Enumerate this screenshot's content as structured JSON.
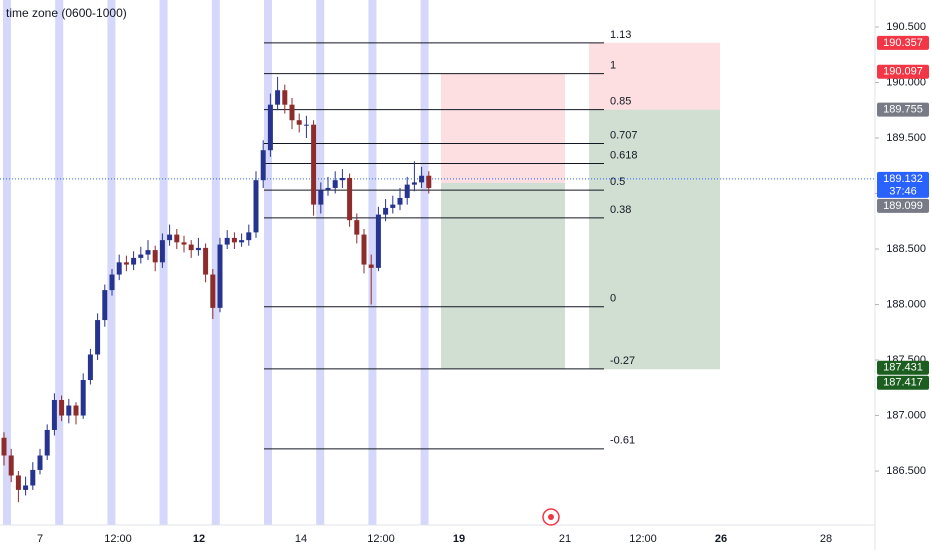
{
  "title": "time zone (0600-1000)",
  "price_axis": {
    "ylim": [
      186.014,
      190.743
    ],
    "ticks": [
      {
        "value": 190.5,
        "label": "190.500"
      },
      {
        "value": 190,
        "label": "190.000"
      },
      {
        "value": 189.5,
        "label": "189.500"
      },
      {
        "value": 189,
        "label": "189.000"
      },
      {
        "value": 188.5,
        "label": "188.500"
      },
      {
        "value": 188,
        "label": "188.000"
      },
      {
        "value": 187.5,
        "label": "187.500"
      },
      {
        "value": 187,
        "label": "187.000"
      },
      {
        "value": 186.5,
        "label": "186.500"
      }
    ]
  },
  "time_axis": [
    {
      "label": "7",
      "bold": false
    },
    {
      "label": "12:00",
      "bold": false
    },
    {
      "label": "12",
      "bold": true
    },
    {
      "label": "14",
      "bold": false
    },
    {
      "label": "12:00",
      "bold": false
    },
    {
      "label": "19",
      "bold": true
    },
    {
      "label": "21",
      "bold": false
    },
    {
      "label": "12:00",
      "bold": false
    },
    {
      "label": "26",
      "bold": true
    },
    {
      "label": "28",
      "bold": false
    }
  ],
  "colors": {
    "up": "#26348f",
    "down": "#8e2b2b"
  },
  "candles": [
    [
      186.8,
      186.85,
      186.55,
      186.64
    ],
    [
      186.64,
      186.7,
      186.4,
      186.46
    ],
    [
      186.46,
      186.5,
      186.22,
      186.33
    ],
    [
      186.33,
      186.45,
      186.28,
      186.37
    ],
    [
      186.37,
      186.58,
      186.33,
      186.51
    ],
    [
      186.51,
      186.7,
      186.47,
      186.64
    ],
    [
      186.64,
      186.92,
      186.6,
      186.87
    ],
    [
      186.87,
      187.2,
      186.82,
      187.14
    ],
    [
      187.14,
      187.18,
      186.95,
      187.0
    ],
    [
      187.0,
      187.15,
      186.93,
      187.09
    ],
    [
      187.09,
      187.12,
      186.92,
      187.0
    ],
    [
      187.0,
      187.38,
      186.97,
      187.32
    ],
    [
      187.32,
      187.6,
      187.28,
      187.55
    ],
    [
      187.55,
      187.92,
      187.5,
      187.86
    ],
    [
      187.86,
      188.18,
      187.8,
      188.13
    ],
    [
      188.13,
      188.32,
      188.08,
      188.27
    ],
    [
      188.27,
      188.45,
      188.22,
      188.38
    ],
    [
      188.38,
      188.44,
      188.3,
      188.36
    ],
    [
      188.36,
      188.48,
      188.31,
      188.42
    ],
    [
      188.42,
      188.52,
      188.37,
      188.45
    ],
    [
      188.45,
      188.58,
      188.4,
      188.49
    ],
    [
      188.49,
      188.53,
      188.3,
      188.38
    ],
    [
      188.38,
      188.64,
      188.33,
      188.58
    ],
    [
      188.58,
      188.72,
      188.53,
      188.63
    ],
    [
      188.63,
      188.68,
      188.5,
      188.56
    ],
    [
      188.56,
      188.62,
      188.47,
      188.54
    ],
    [
      188.54,
      188.58,
      188.42,
      188.49
    ],
    [
      188.49,
      188.6,
      188.44,
      188.51
    ],
    [
      188.51,
      188.55,
      188.2,
      188.27
    ],
    [
      188.27,
      188.32,
      187.87,
      187.97
    ],
    [
      187.97,
      188.6,
      187.93,
      188.54
    ],
    [
      188.54,
      188.67,
      188.5,
      188.6
    ],
    [
      188.6,
      188.65,
      188.5,
      188.56
    ],
    [
      188.56,
      188.64,
      188.52,
      188.58
    ],
    [
      188.58,
      188.72,
      188.53,
      188.65
    ],
    [
      188.65,
      189.2,
      188.6,
      189.12
    ],
    [
      189.12,
      189.48,
      189.05,
      189.39
    ],
    [
      189.39,
      189.9,
      189.33,
      189.8
    ],
    [
      189.8,
      190.05,
      189.75,
      189.93
    ],
    [
      189.93,
      189.98,
      189.72,
      189.8
    ],
    [
      189.8,
      189.86,
      189.58,
      189.66
    ],
    [
      189.66,
      189.72,
      189.55,
      189.62
    ],
    [
      189.62,
      189.7,
      189.5,
      189.62
    ],
    [
      189.62,
      189.66,
      188.8,
      188.9
    ],
    [
      188.9,
      189.1,
      188.82,
      189.03
    ],
    [
      189.03,
      189.15,
      188.98,
      189.05
    ],
    [
      189.05,
      189.2,
      189.0,
      189.12
    ],
    [
      189.12,
      189.22,
      189.05,
      189.14
    ],
    [
      189.14,
      189.18,
      188.7,
      188.76
    ],
    [
      188.76,
      188.82,
      188.55,
      188.63
    ],
    [
      188.63,
      188.68,
      188.28,
      188.36
    ],
    [
      188.36,
      188.45,
      188.0,
      188.33
    ],
    [
      188.33,
      188.88,
      188.3,
      188.81
    ],
    [
      188.81,
      188.95,
      188.75,
      188.87
    ],
    [
      188.87,
      188.98,
      188.82,
      188.9
    ],
    [
      188.9,
      189.05,
      188.85,
      188.96
    ],
    [
      188.96,
      189.15,
      188.9,
      189.08
    ],
    [
      189.08,
      189.29,
      189.02,
      189.1
    ],
    [
      189.1,
      189.24,
      189.05,
      189.16
    ],
    [
      189.16,
      189.2,
      189.0,
      189.05
    ]
  ],
  "current_price": {
    "value": 189.132,
    "label": "189.132",
    "countdown": "37:46",
    "color": "#2962ff"
  },
  "fib": {
    "color": "#131722",
    "levels": [
      {
        "ratio": 1.13,
        "price": 190.357
      },
      {
        "ratio": 1,
        "price": 190.08
      },
      {
        "ratio": 0.85,
        "price": 189.755
      },
      {
        "ratio": 0.707,
        "price": 189.45
      },
      {
        "ratio": 0.618,
        "price": 189.27
      },
      {
        "ratio": 0.5,
        "price": 189.03
      },
      {
        "ratio": 0.38,
        "price": 188.78
      },
      {
        "ratio": 0,
        "price": 187.98
      },
      {
        "ratio": -0.27,
        "price": 187.42
      },
      {
        "ratio": -0.61,
        "price": 186.7
      }
    ]
  },
  "positions": [
    {
      "stop": 190.08,
      "entry": 189.095,
      "target": 187.42
    },
    {
      "stop": 190.357,
      "entry": 189.755,
      "target": 187.417
    }
  ],
  "price_tags": [
    {
      "value": 190.357,
      "label": "190.357",
      "color": "#f23645"
    },
    {
      "value": 190.097,
      "label": "190.097",
      "color": "#f23645"
    },
    {
      "value": 189.755,
      "label": "189.755",
      "color": "#787b86"
    },
    {
      "value": 189.099,
      "label": "189.099",
      "color": "#787b86"
    },
    {
      "value": 187.431,
      "label": "187.431",
      "color": "#1b5e20"
    },
    {
      "value": 187.417,
      "label": "187.417",
      "color": "#1b5e20"
    }
  ]
}
